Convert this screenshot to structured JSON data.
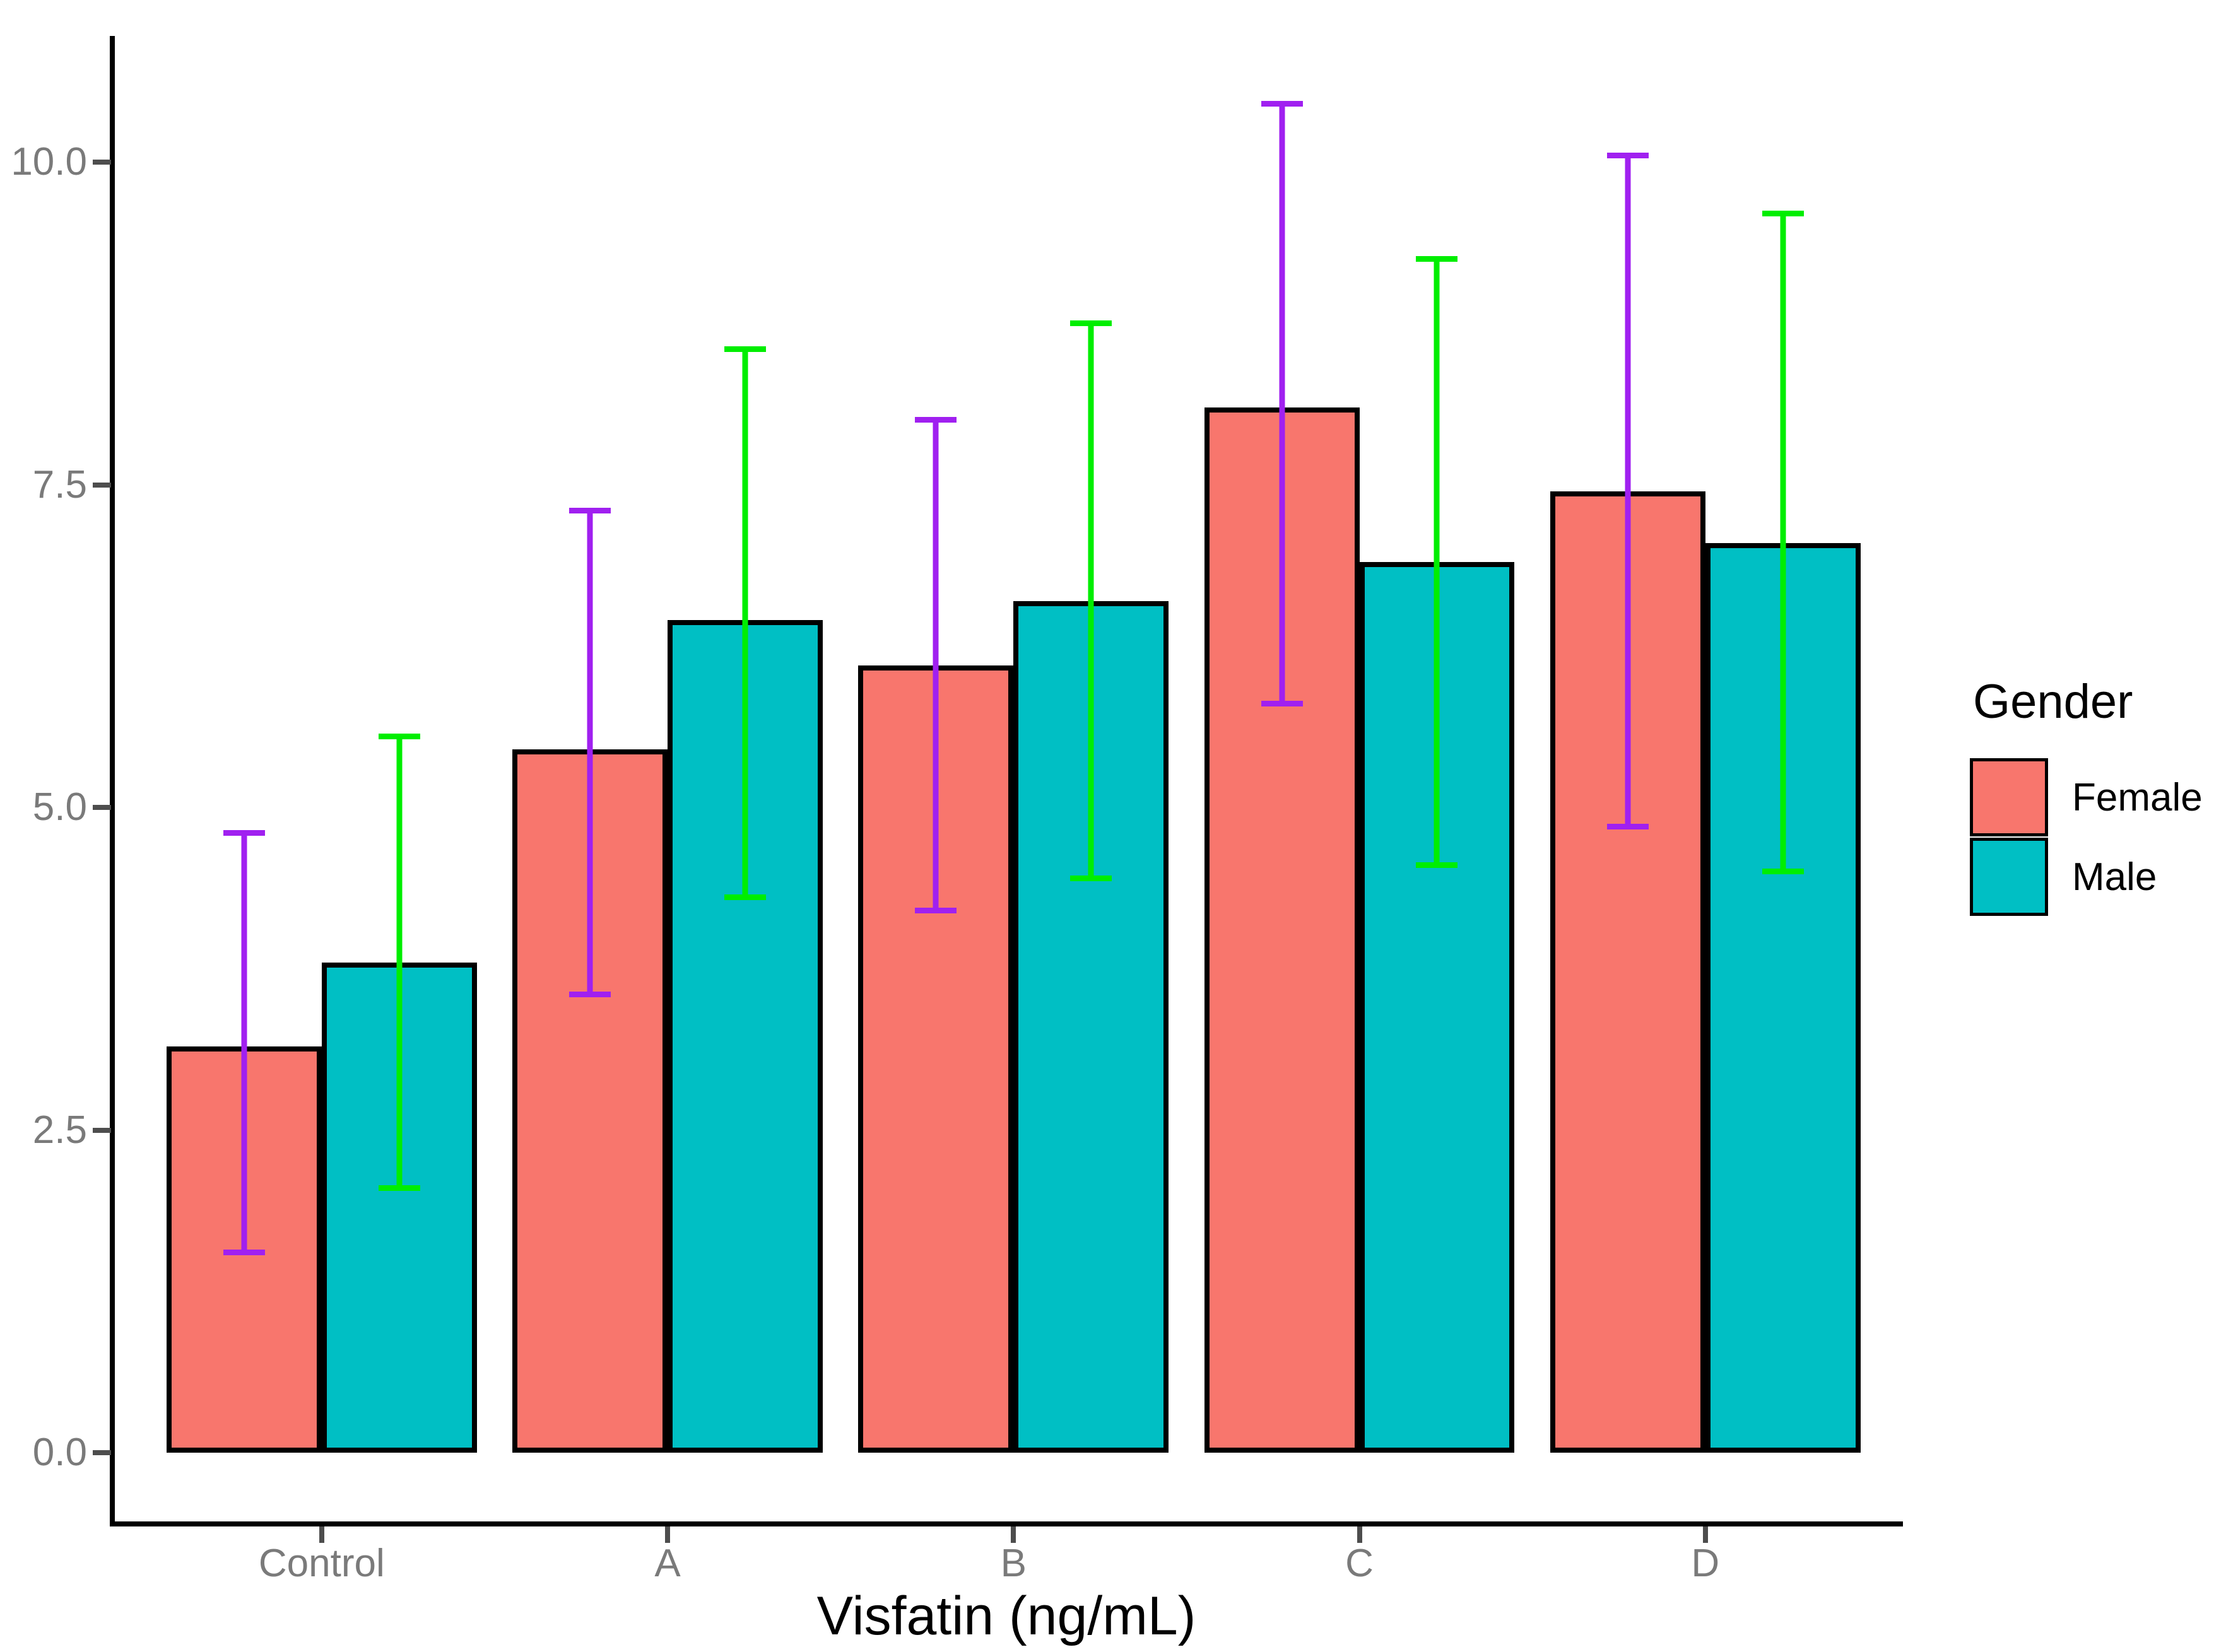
{
  "chart_data": {
    "type": "bar",
    "title": "",
    "xlabel": "Visfatin (ng/mL)",
    "ylabel": "",
    "categories": [
      "Control",
      "A",
      "B",
      "C",
      "D"
    ],
    "series": [
      {
        "name": "Female",
        "fill": "#F8766D",
        "error_color": "#A020F0",
        "values": [
          3.15,
          5.45,
          6.1,
          8.1,
          7.45
        ],
        "error_low": [
          1.55,
          3.55,
          4.2,
          5.8,
          4.85
        ],
        "error_high": [
          4.8,
          7.3,
          8.0,
          10.45,
          10.05
        ]
      },
      {
        "name": "Male",
        "fill": "#00BFC4",
        "error_color": "#00EE00",
        "values": [
          3.8,
          6.45,
          6.6,
          6.9,
          7.05
        ],
        "error_low": [
          2.05,
          4.3,
          4.45,
          4.55,
          4.5
        ],
        "error_high": [
          5.55,
          8.55,
          8.75,
          9.25,
          9.6
        ]
      }
    ],
    "y_ticks": [
      {
        "value": 0.0,
        "label": "0.0"
      },
      {
        "value": 2.5,
        "label": "2.5"
      },
      {
        "value": 5.0,
        "label": "5.0"
      },
      {
        "value": 7.5,
        "label": "7.5"
      },
      {
        "value": 10.0,
        "label": "10.0"
      }
    ],
    "ylim": [
      -0.53,
      10.97
    ],
    "grid": false,
    "bar_outline": "#000000",
    "legend": {
      "title": "Gender",
      "position": "right"
    },
    "axis": {
      "line_color": "#000000",
      "tick_color": "#4D4D4D",
      "label_color": "#7A7A7A",
      "title_color": "#000000"
    }
  }
}
